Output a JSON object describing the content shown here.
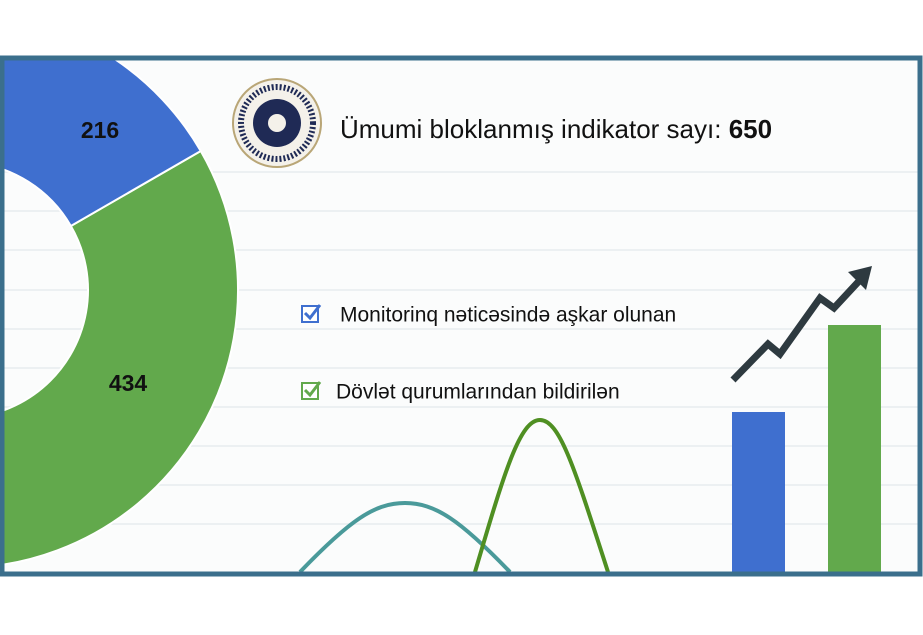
{
  "chart_data": {
    "type": "donut",
    "title": "Ümumi bloklanmış indikator sayı:",
    "total": 650,
    "categories": [
      "Monitorinq nəticəsində aşkar olunan",
      "Dövlət qurumlarından bildirilən"
    ],
    "values": [
      216,
      434
    ],
    "colors": [
      "#3f6fcf",
      "#62a94c"
    ]
  }
}
